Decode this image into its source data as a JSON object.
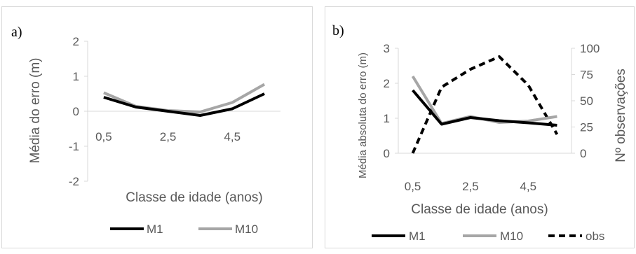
{
  "chart_data": [
    {
      "type": "line",
      "panel_label": "a)",
      "x": [
        0.5,
        1.5,
        2.5,
        3.5,
        4.5,
        5.5
      ],
      "x_tick_labels": [
        "0,5",
        "2,5",
        "4,5"
      ],
      "x_tick_values": [
        0.5,
        2.5,
        4.5
      ],
      "xlabel": "Classe de idade (anos)",
      "ylabel": "Média do erro (m)",
      "ylim": [
        -2,
        2
      ],
      "y_ticks": [
        2,
        1,
        0,
        -1,
        -2
      ],
      "series": [
        {
          "name": "M1",
          "color": "#000000",
          "dash": "solid",
          "values": [
            0.4,
            0.12,
            0.0,
            -0.12,
            0.07,
            0.5
          ]
        },
        {
          "name": "M10",
          "color": "#a6a6a6",
          "dash": "solid",
          "values": [
            0.53,
            0.14,
            0.02,
            -0.02,
            0.25,
            0.77
          ]
        }
      ],
      "legend": "bottom",
      "grid": false
    },
    {
      "type": "line",
      "panel_label": "b)",
      "x": [
        0.5,
        1.5,
        2.5,
        3.5,
        4.5,
        5.5
      ],
      "x_tick_labels": [
        "0,5",
        "2,5",
        "4,5"
      ],
      "x_tick_values": [
        0.5,
        2.5,
        4.5
      ],
      "xlabel": "Classe de idade (anos)",
      "ylabel": "Média absoluta do erro (m)",
      "ylim": [
        0,
        3
      ],
      "y_ticks": [
        3,
        2,
        1,
        0
      ],
      "y2label": "Nº observações",
      "y2lim": [
        0,
        100
      ],
      "y2_ticks": [
        100,
        75,
        50,
        25,
        0
      ],
      "series": [
        {
          "name": "M1",
          "axis": "left",
          "color": "#000000",
          "dash": "solid",
          "values": [
            1.8,
            0.83,
            1.02,
            0.93,
            0.87,
            0.8
          ]
        },
        {
          "name": "M10",
          "axis": "left",
          "color": "#a6a6a6",
          "dash": "solid",
          "values": [
            2.2,
            0.85,
            1.05,
            0.88,
            0.92,
            1.05
          ]
        },
        {
          "name": "obs",
          "axis": "right",
          "color": "#000000",
          "dash": "dashed",
          "values": [
            0,
            63,
            80,
            92,
            65,
            18
          ]
        }
      ],
      "legend": "bottom",
      "grid": false
    }
  ]
}
